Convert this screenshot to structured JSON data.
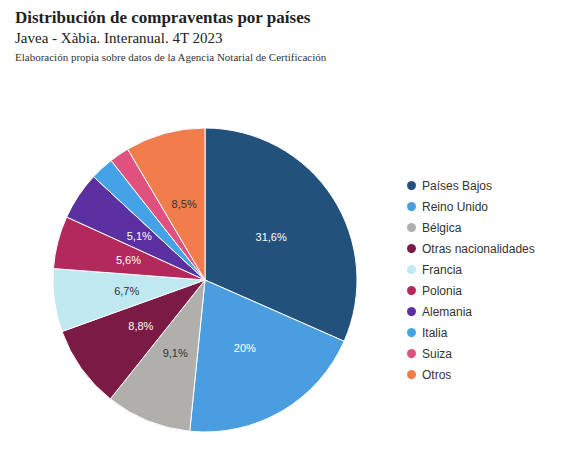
{
  "chart_data": {
    "type": "pie",
    "title": "Distribución de compraventas por países",
    "subtitle": "Javea - Xàbia. Interanual. 4T 2023",
    "annotations": [
      "Elaboración propia sobre datos de la Agencia Notarial de Certificación"
    ],
    "categories": [
      "Países Bajos",
      "Reino Unido",
      "Bélgica",
      "Otras nacionalidades",
      "Francia",
      "Polonia",
      "Alemania",
      "Italia",
      "Suiza",
      "Otros"
    ],
    "values": [
      31.6,
      20,
      9.1,
      8.8,
      6.7,
      5.6,
      5.1,
      2.5,
      2.1,
      8.5
    ],
    "value_labels": [
      "31,6%",
      "20%",
      "9,1%",
      "8,8%",
      "6,7%",
      "5,6%",
      "5,1%",
      null,
      null,
      "8,5%"
    ],
    "colors": [
      "#22527c",
      "#4a9ee0",
      "#b1afac",
      "#7b1a45",
      "#bfe8f0",
      "#b3295b",
      "#5b30a1",
      "#44a3e6",
      "#e0517f",
      "#f07d4b"
    ],
    "data_labels": true,
    "legend": "right"
  }
}
